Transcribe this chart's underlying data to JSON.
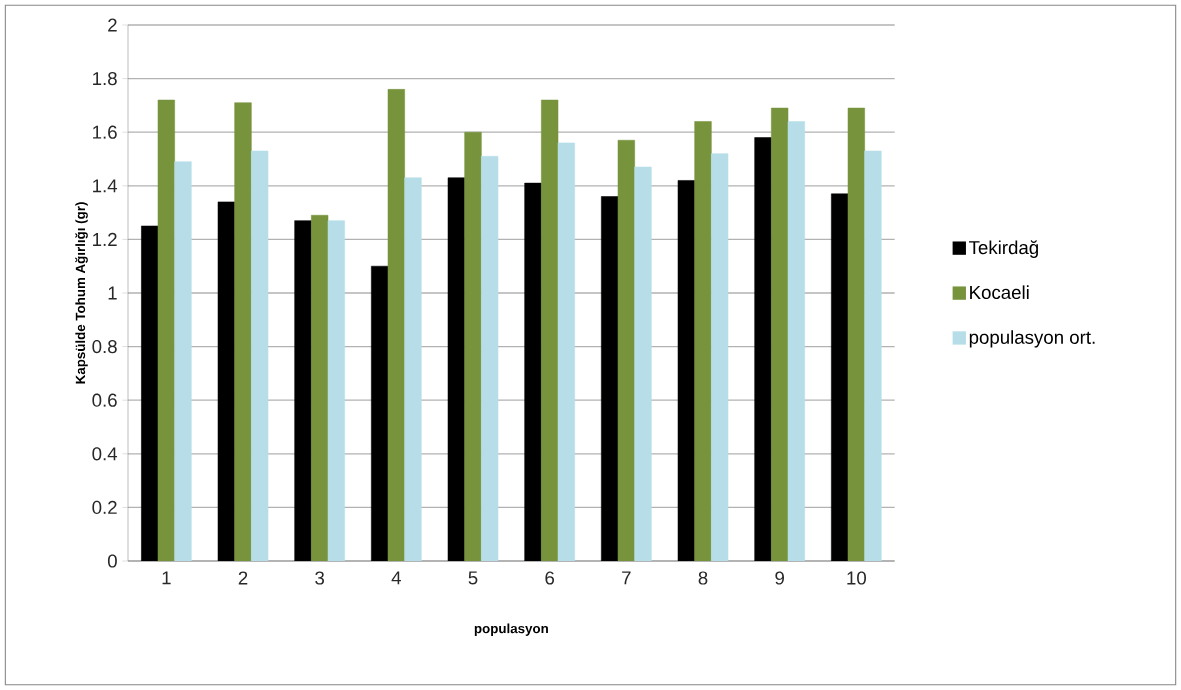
{
  "chart_data": {
    "type": "bar",
    "xlabel": "populasyon",
    "ylabel": "Kapsülde Tohum Ağırlığı (gr)",
    "categories": [
      "1",
      "2",
      "3",
      "4",
      "5",
      "6",
      "7",
      "8",
      "9",
      "10"
    ],
    "series": [
      {
        "name": "Tekirdağ",
        "color": "#000000",
        "values": [
          1.25,
          1.34,
          1.27,
          1.1,
          1.43,
          1.41,
          1.36,
          1.42,
          1.58,
          1.37
        ]
      },
      {
        "name": "Kocaeli",
        "color": "#77933c",
        "values": [
          1.72,
          1.71,
          1.29,
          1.76,
          1.6,
          1.72,
          1.57,
          1.64,
          1.69,
          1.69
        ]
      },
      {
        "name": "populasyon ort.",
        "color": "#b7dee8",
        "values": [
          1.49,
          1.53,
          1.27,
          1.43,
          1.51,
          1.56,
          1.47,
          1.52,
          1.64,
          1.53
        ]
      }
    ],
    "ylim": [
      0,
      2
    ],
    "yticks": [
      0,
      0.2,
      0.4,
      0.6,
      0.8,
      1,
      1.2,
      1.4,
      1.6,
      1.8,
      2
    ],
    "grid": "y",
    "legend": "right"
  }
}
